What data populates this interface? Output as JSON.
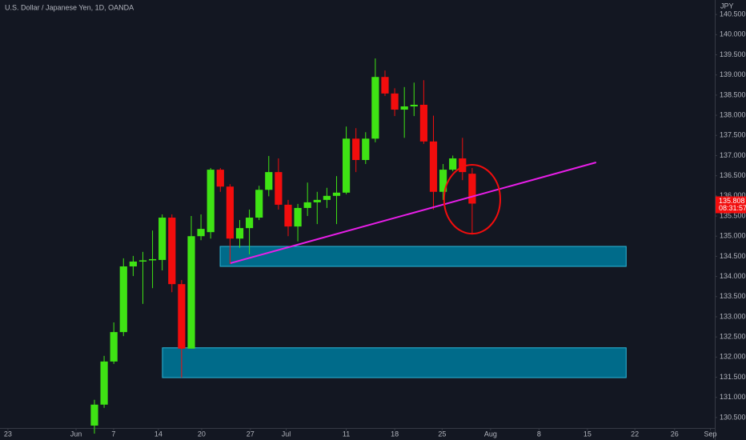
{
  "header": {
    "title": "U.S. Dollar / Japanese Yen, 1D, OANDA",
    "currency": "JPY"
  },
  "chart_data": {
    "type": "candlestick",
    "up_color": "#3fe314",
    "down_color": "#f20d0d",
    "open": [
      130.3,
      130.82,
      131.89,
      132.62,
      134.25,
      134.37,
      134.4,
      134.41,
      135.46,
      133.81,
      132.21,
      135.0,
      135.1,
      136.65,
      136.23,
      134.94,
      135.2,
      135.46,
      136.15,
      136.59,
      135.78,
      135.24,
      135.7,
      135.84,
      135.9,
      136.0,
      136.08,
      137.42,
      136.89,
      137.42,
      138.95,
      138.54,
      138.14,
      138.22,
      138.26,
      137.35,
      136.1,
      136.65,
      136.93,
      136.55
    ],
    "high": [
      130.94,
      132.03,
      132.86,
      134.45,
      134.51,
      134.61,
      135.14,
      135.54,
      135.54,
      133.91,
      135.5,
      135.54,
      136.69,
      136.69,
      136.29,
      135.4,
      135.66,
      136.25,
      136.99,
      136.93,
      135.9,
      135.8,
      136.33,
      136.1,
      136.2,
      136.49,
      137.72,
      137.68,
      137.58,
      139.41,
      139.11,
      138.67,
      138.7,
      138.81,
      138.87,
      137.99,
      136.79,
      137.0,
      137.44,
      136.69
    ],
    "low": [
      130.1,
      130.74,
      131.83,
      132.52,
      134.01,
      133.32,
      133.71,
      134.15,
      133.61,
      131.49,
      132.21,
      134.9,
      134.94,
      136.1,
      134.31,
      134.71,
      134.55,
      135.4,
      135.99,
      135.66,
      135.0,
      134.87,
      135.5,
      135.3,
      135.7,
      135.3,
      136.04,
      136.59,
      136.79,
      137.33,
      138.48,
      137.98,
      137.44,
      137.98,
      137.29,
      135.66,
      135.9,
      136.61,
      136.39,
      135.04
    ],
    "close": [
      130.82,
      131.89,
      132.62,
      134.25,
      134.37,
      134.4,
      134.43,
      135.46,
      133.81,
      132.21,
      135.0,
      135.18,
      136.65,
      136.23,
      134.94,
      135.2,
      135.46,
      136.15,
      136.59,
      135.78,
      135.24,
      135.7,
      135.84,
      135.9,
      136.0,
      136.08,
      137.42,
      136.89,
      137.42,
      138.95,
      138.54,
      138.14,
      138.22,
      138.26,
      137.35,
      136.1,
      136.65,
      136.93,
      136.59,
      135.808
    ],
    "xlim": [
      -9.75,
      64.05
    ],
    "xticks": [
      {
        "value": -8.93,
        "label": "23"
      },
      {
        "value": -1.9,
        "label": "Jun"
      },
      {
        "value": 1.98,
        "label": "7"
      },
      {
        "value": 6.6,
        "label": "14"
      },
      {
        "value": 11.07,
        "label": "20"
      },
      {
        "value": 16.1,
        "label": "27"
      },
      {
        "value": 19.8,
        "label": "Jul"
      },
      {
        "value": 26.0,
        "label": "11"
      },
      {
        "value": 31.0,
        "label": "18"
      },
      {
        "value": 35.9,
        "label": "25"
      },
      {
        "value": 40.9,
        "label": "Aug"
      },
      {
        "value": 45.9,
        "label": "8"
      },
      {
        "value": 50.9,
        "label": "15"
      },
      {
        "value": 55.8,
        "label": "22"
      },
      {
        "value": 59.9,
        "label": "26"
      },
      {
        "value": 63.6,
        "label": "Sep"
      }
    ],
    "ylim": [
      130.24,
      140.86
    ],
    "yticks": [
      {
        "value": 130.5,
        "label": "130.500"
      },
      {
        "value": 131,
        "label": "131.000"
      },
      {
        "value": 131.5,
        "label": "131.500"
      },
      {
        "value": 132,
        "label": "132.000"
      },
      {
        "value": 132.5,
        "label": "132.500"
      },
      {
        "value": 133,
        "label": "133.000"
      },
      {
        "value": 133.5,
        "label": "133.500"
      },
      {
        "value": 134,
        "label": "134.000"
      },
      {
        "value": 134.5,
        "label": "134.500"
      },
      {
        "value": 135,
        "label": "135.000"
      },
      {
        "value": 135.5,
        "label": "135.500"
      },
      {
        "value": 136,
        "label": "136.000"
      },
      {
        "value": 136.5,
        "label": "136.500"
      },
      {
        "value": 137,
        "label": "137.000"
      },
      {
        "value": 137.5,
        "label": "137.500"
      },
      {
        "value": 138,
        "label": "138.000"
      },
      {
        "value": 138.5,
        "label": "138.500"
      },
      {
        "value": 139,
        "label": "139.000"
      },
      {
        "value": 139.5,
        "label": "139.500"
      },
      {
        "value": 140,
        "label": "140.000"
      },
      {
        "value": 140.5,
        "label": "140.500"
      }
    ],
    "last_price": 135.808,
    "countdown": "08:31:57",
    "zones": [
      {
        "x": [
          12.98,
          54.9
        ],
        "y": [
          134.25,
          134.746
        ]
      },
      {
        "x": [
          7.02,
          54.9
        ],
        "y": [
          131.49,
          132.23
        ]
      }
    ],
    "trendline": {
      "x": [
        14.05,
        51.8
      ],
      "y": [
        134.33,
        136.83
      ],
      "color": "#e81ee8"
    },
    "ellipse": {
      "x": [
        36.1,
        41.9
      ],
      "y": [
        135.06,
        136.77
      ],
      "color": "#f20d0d"
    }
  }
}
